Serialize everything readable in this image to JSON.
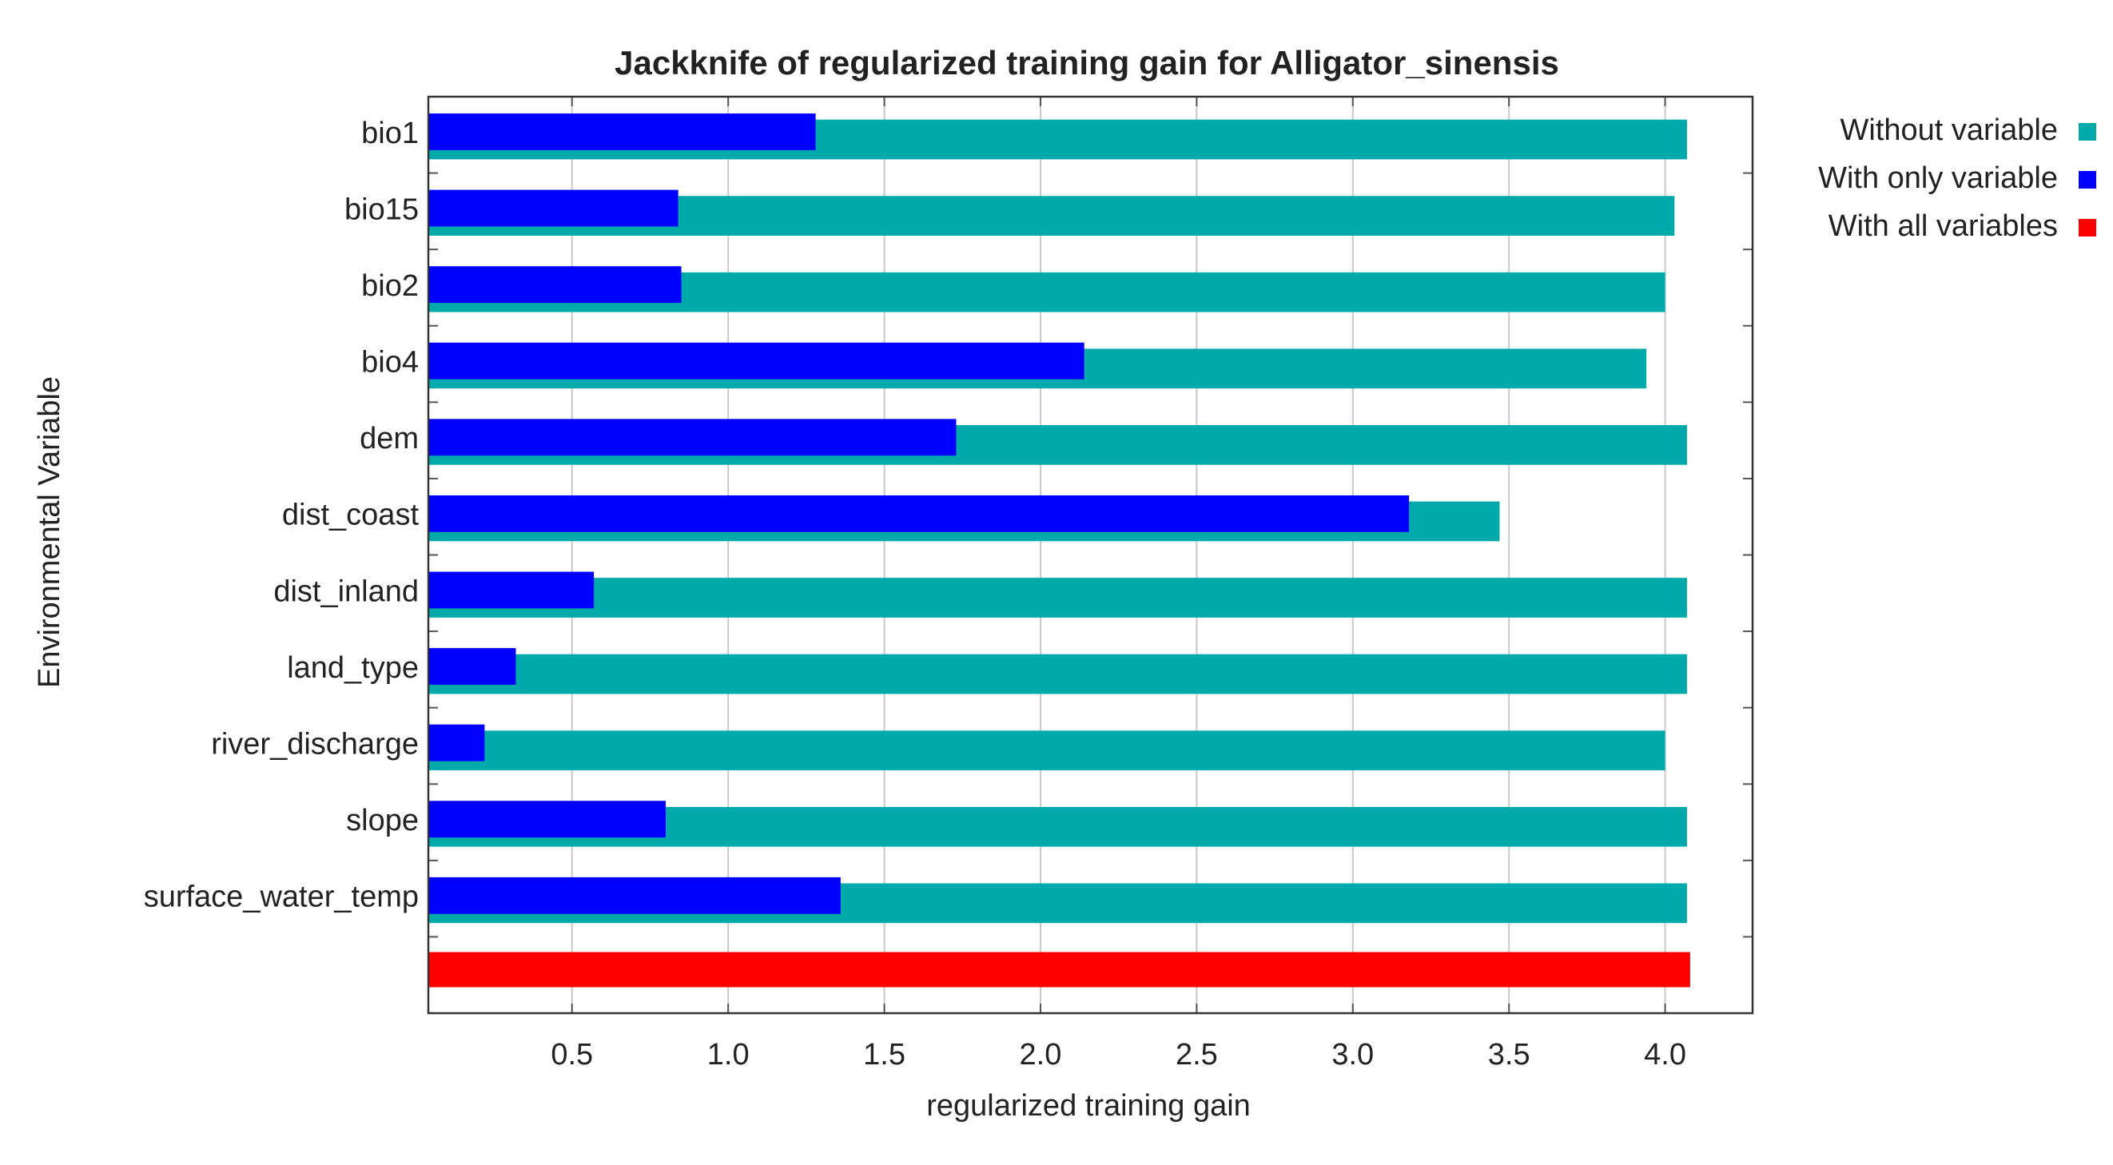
{
  "chart_data": {
    "type": "hbar",
    "title": "Jackknife of regularized training gain for Alligator_sinensis",
    "xlabel": "regularized training gain",
    "ylabel": "Environmental Variable",
    "categories": [
      "bio1",
      "bio15",
      "bio2",
      "bio4",
      "dem",
      "dist_coast",
      "dist_inland",
      "land_type",
      "river_discharge",
      "slope",
      "surface_water_temp",
      null
    ],
    "series": [
      {
        "name": "Without variable",
        "color": "#00aaaa",
        "values": [
          4.07,
          4.03,
          4.0,
          3.94,
          4.07,
          3.47,
          4.07,
          4.07,
          4.0,
          4.07,
          4.07,
          null
        ]
      },
      {
        "name": "With only variable",
        "color": "#0000ff",
        "values": [
          1.28,
          0.84,
          0.85,
          2.14,
          1.73,
          3.18,
          0.57,
          0.32,
          0.22,
          0.8,
          1.36,
          null
        ]
      },
      {
        "name": "With all variables",
        "color": "#ff0000",
        "values": [
          null,
          null,
          null,
          null,
          null,
          null,
          null,
          null,
          null,
          null,
          null,
          4.08
        ]
      }
    ],
    "xlim": [
      0.04,
      4.28
    ],
    "xticks": [
      0.5,
      {
        "value": 1,
        "label": "1.0"
      },
      1.5,
      {
        "value": 2,
        "label": "2.0"
      },
      2.5,
      {
        "value": 3,
        "label": "3.0"
      },
      3.5,
      {
        "value": 4,
        "label": "4.0"
      }
    ],
    "grid": true,
    "legend": "right"
  }
}
